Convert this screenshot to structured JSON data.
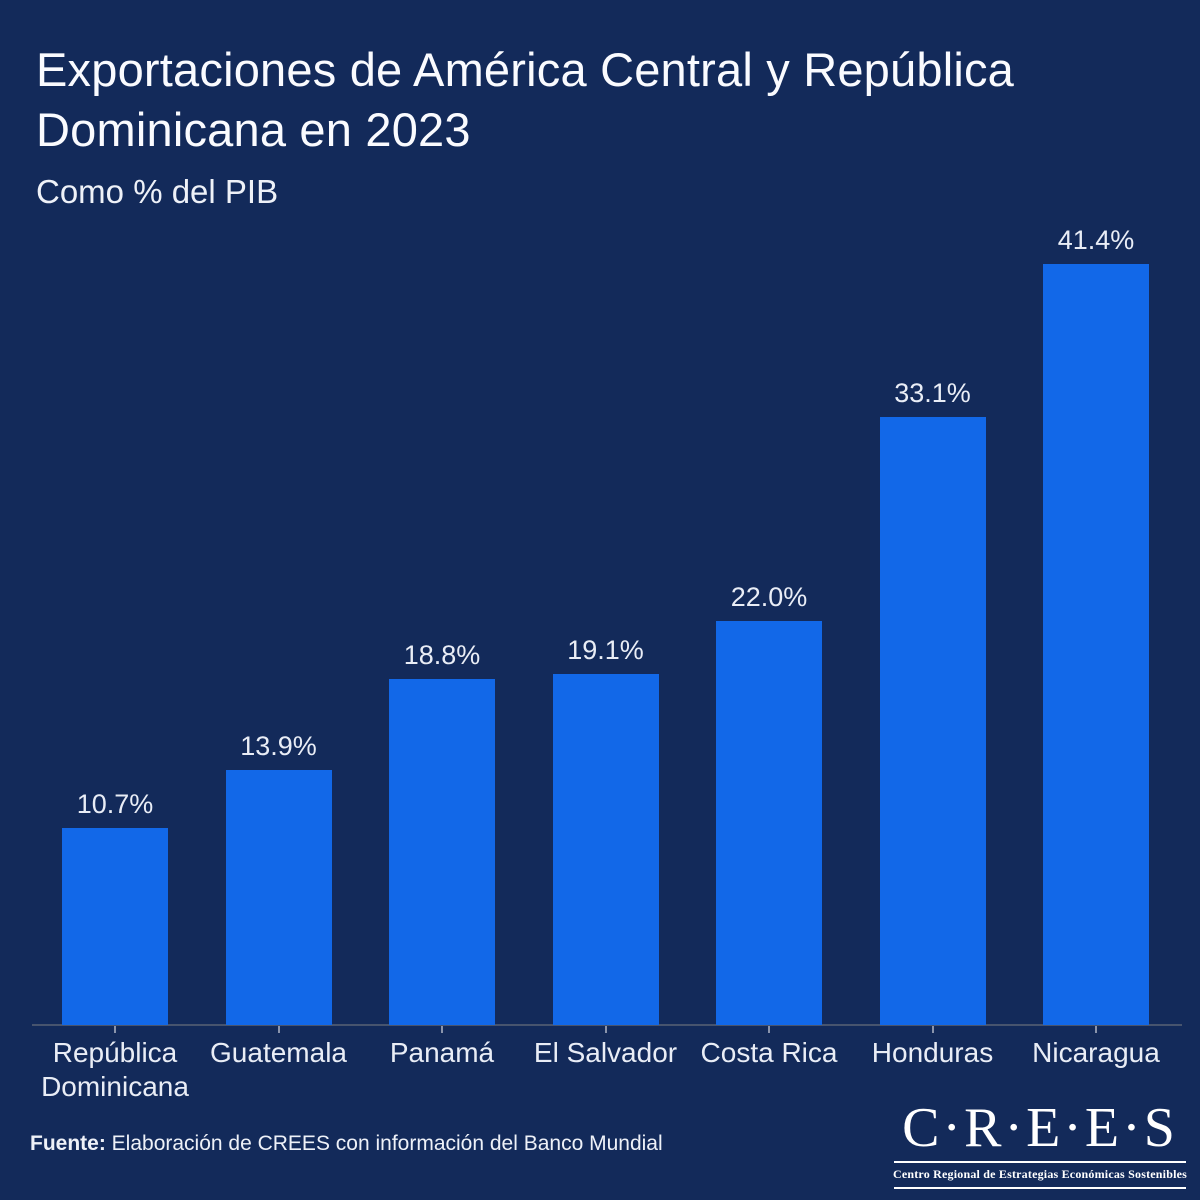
{
  "header": {
    "title": "Exportaciones de América Central y República Dominicana en 2023",
    "subtitle": "Como % del PIB"
  },
  "chart_data": {
    "type": "bar",
    "categories": [
      "República Dominicana",
      "Guatemala",
      "Panamá",
      "El Salvador",
      "Costa Rica",
      "Honduras",
      "Nicaragua"
    ],
    "values": [
      10.7,
      13.9,
      18.8,
      19.1,
      22.0,
      33.1,
      41.4
    ],
    "value_labels": [
      "10.7%",
      "13.9%",
      "18.8%",
      "19.1%",
      "22.0%",
      "33.1%",
      "41.4%"
    ],
    "title": "Exportaciones de América Central y República Dominicana en 2023",
    "subtitle": "Como % del PIB",
    "xlabel": "",
    "ylabel": "",
    "ylim": [
      0,
      45
    ],
    "grid": false,
    "legend": false,
    "bar_color": "#1268e8",
    "background_color": "#132a5a",
    "axis_color": "#47546e",
    "tick_color": "#8a94ac",
    "label_color": "#e9edf6"
  },
  "footer": {
    "source_label": "Fuente:",
    "source_text": " Elaboración de CREES con información del Banco Mundial"
  },
  "logo": {
    "name": "C·R·E·E·S",
    "tagline": "Centro Regional de Estrategias Económicas Sostenibles"
  }
}
